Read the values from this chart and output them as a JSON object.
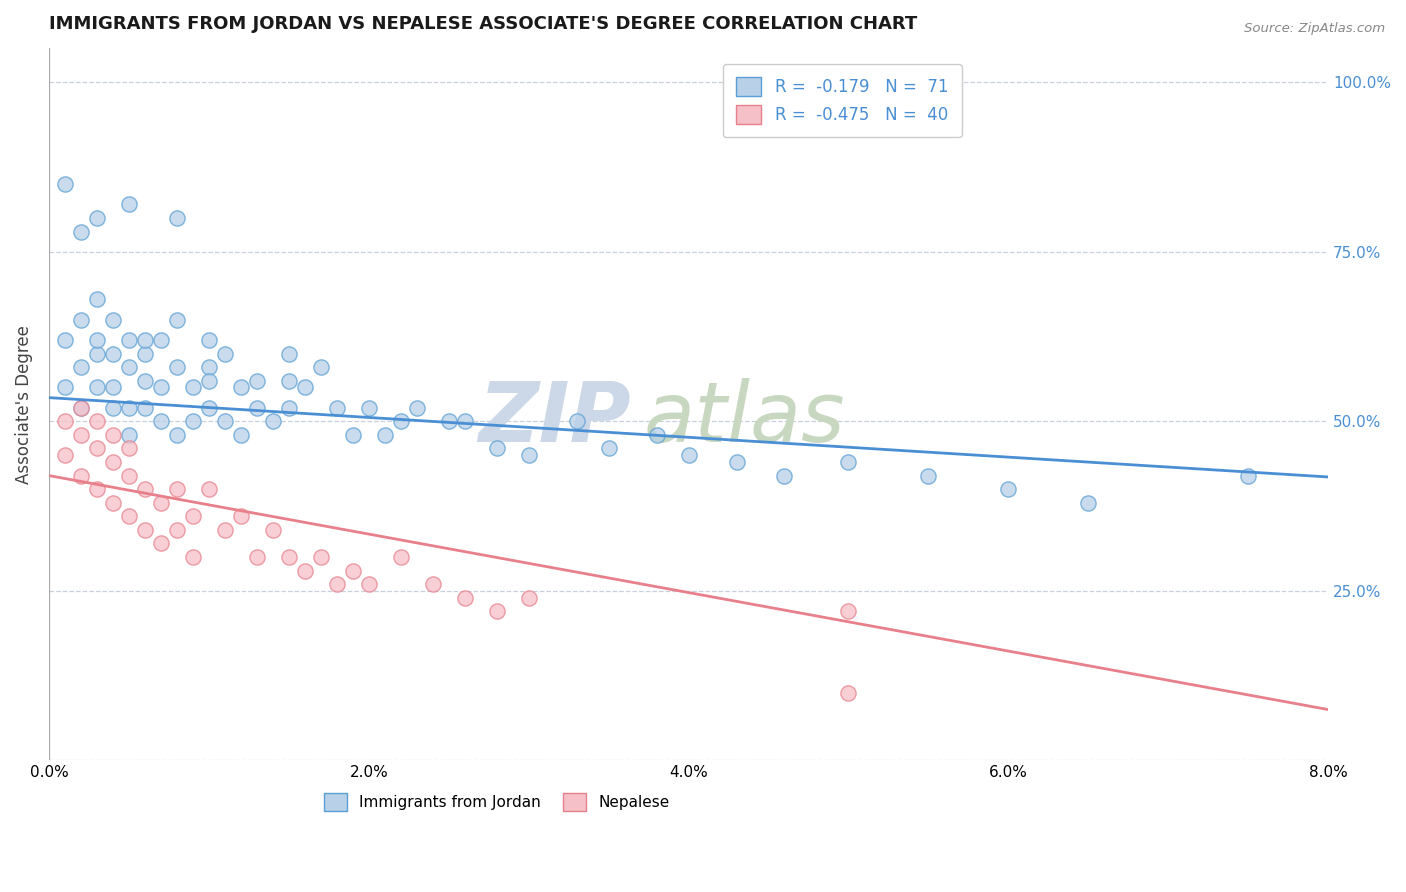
{
  "title": "IMMIGRANTS FROM JORDAN VS NEPALESE ASSOCIATE'S DEGREE CORRELATION CHART",
  "source_text": "Source: ZipAtlas.com",
  "ylabel": "Associate's Degree",
  "xmin": 0.0,
  "xmax": 0.08,
  "ymin": 0.0,
  "ymax": 1.05,
  "ytick_vals": [
    0.0,
    0.25,
    0.5,
    0.75,
    1.0
  ],
  "ytick_labels_right": [
    "",
    "25.0%",
    "50.0%",
    "75.0%",
    "100.0%"
  ],
  "xtick_vals": [
    0.0,
    0.02,
    0.04,
    0.06,
    0.08
  ],
  "xtick_labels": [
    "0.0%",
    "2.0%",
    "4.0%",
    "6.0%",
    "8.0%"
  ],
  "legend_blue_label": "Immigrants from Jordan",
  "legend_pink_label": "Nepalese",
  "R_blue": -0.179,
  "N_blue": 71,
  "R_pink": -0.475,
  "N_pink": 40,
  "blue_face": "#b8d0e8",
  "blue_edge": "#5a9fd4",
  "pink_face": "#f5c0c8",
  "pink_edge": "#e8808c",
  "blue_line": "#4a8fd4",
  "pink_line": "#e8808c",
  "grid_color": "#c8d0dc",
  "blue_x": [
    0.001,
    0.001,
    0.002,
    0.002,
    0.002,
    0.003,
    0.003,
    0.003,
    0.003,
    0.004,
    0.004,
    0.004,
    0.004,
    0.005,
    0.005,
    0.005,
    0.005,
    0.006,
    0.006,
    0.006,
    0.006,
    0.007,
    0.007,
    0.007,
    0.008,
    0.008,
    0.008,
    0.009,
    0.009,
    0.01,
    0.01,
    0.01,
    0.011,
    0.011,
    0.012,
    0.012,
    0.013,
    0.013,
    0.014,
    0.015,
    0.015,
    0.016,
    0.017,
    0.018,
    0.019,
    0.02,
    0.021,
    0.022,
    0.023,
    0.025,
    0.026,
    0.028,
    0.03,
    0.033,
    0.035,
    0.038,
    0.04,
    0.043,
    0.046,
    0.05,
    0.055,
    0.06,
    0.065,
    0.001,
    0.002,
    0.003,
    0.005,
    0.008,
    0.01,
    0.015,
    0.075
  ],
  "blue_y": [
    0.55,
    0.62,
    0.58,
    0.65,
    0.52,
    0.6,
    0.55,
    0.62,
    0.68,
    0.55,
    0.6,
    0.65,
    0.52,
    0.58,
    0.62,
    0.52,
    0.48,
    0.6,
    0.56,
    0.52,
    0.62,
    0.55,
    0.62,
    0.5,
    0.58,
    0.65,
    0.48,
    0.55,
    0.5,
    0.58,
    0.52,
    0.56,
    0.6,
    0.5,
    0.55,
    0.48,
    0.52,
    0.56,
    0.5,
    0.52,
    0.56,
    0.55,
    0.58,
    0.52,
    0.48,
    0.52,
    0.48,
    0.5,
    0.52,
    0.5,
    0.5,
    0.46,
    0.45,
    0.5,
    0.46,
    0.48,
    0.45,
    0.44,
    0.42,
    0.44,
    0.42,
    0.4,
    0.38,
    0.85,
    0.78,
    0.8,
    0.82,
    0.8,
    0.62,
    0.6,
    0.42
  ],
  "pink_x": [
    0.001,
    0.001,
    0.002,
    0.002,
    0.002,
    0.003,
    0.003,
    0.003,
    0.004,
    0.004,
    0.004,
    0.005,
    0.005,
    0.005,
    0.006,
    0.006,
    0.007,
    0.007,
    0.008,
    0.008,
    0.009,
    0.009,
    0.01,
    0.011,
    0.012,
    0.013,
    0.014,
    0.015,
    0.016,
    0.017,
    0.018,
    0.019,
    0.02,
    0.022,
    0.024,
    0.026,
    0.028,
    0.03,
    0.05,
    0.05
  ],
  "pink_y": [
    0.5,
    0.45,
    0.48,
    0.42,
    0.52,
    0.46,
    0.4,
    0.5,
    0.44,
    0.38,
    0.48,
    0.42,
    0.36,
    0.46,
    0.4,
    0.34,
    0.38,
    0.32,
    0.4,
    0.34,
    0.36,
    0.3,
    0.4,
    0.34,
    0.36,
    0.3,
    0.34,
    0.3,
    0.28,
    0.3,
    0.26,
    0.28,
    0.26,
    0.3,
    0.26,
    0.24,
    0.22,
    0.24,
    0.22,
    0.1
  ]
}
